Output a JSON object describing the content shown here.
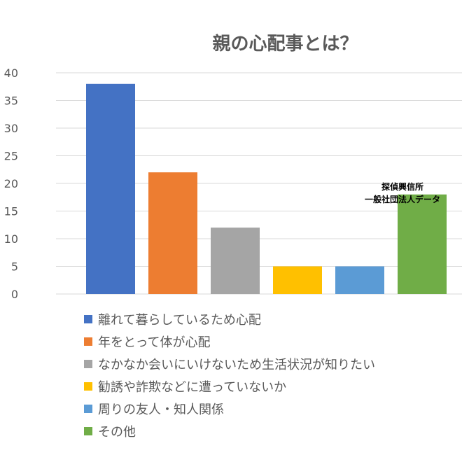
{
  "chart_data": {
    "type": "bar",
    "title": "親の心配事とは？",
    "categories": [
      "離れて暮らしているため心配",
      "年をとって体が心配",
      "なかなか会いにいけないため生活状況が知りたい",
      "勧誘や詐欺などに遭っていないか",
      "周りの友人・知人関係",
      "その他"
    ],
    "values": [
      38,
      22,
      12,
      5,
      5,
      18
    ],
    "colors": [
      "#4472C4",
      "#ED7D31",
      "#A5A5A5",
      "#FFC000",
      "#5B9BD5",
      "#70AD47"
    ],
    "ylim": [
      0,
      40
    ],
    "yticks": [
      "0",
      "5",
      "10",
      "15",
      "20",
      "25",
      "30",
      "35",
      "40"
    ],
    "grid": true,
    "legend_position": "bottom",
    "annotation": {
      "line1": "探偵興信所",
      "line2": "一般社団法人データ"
    }
  }
}
